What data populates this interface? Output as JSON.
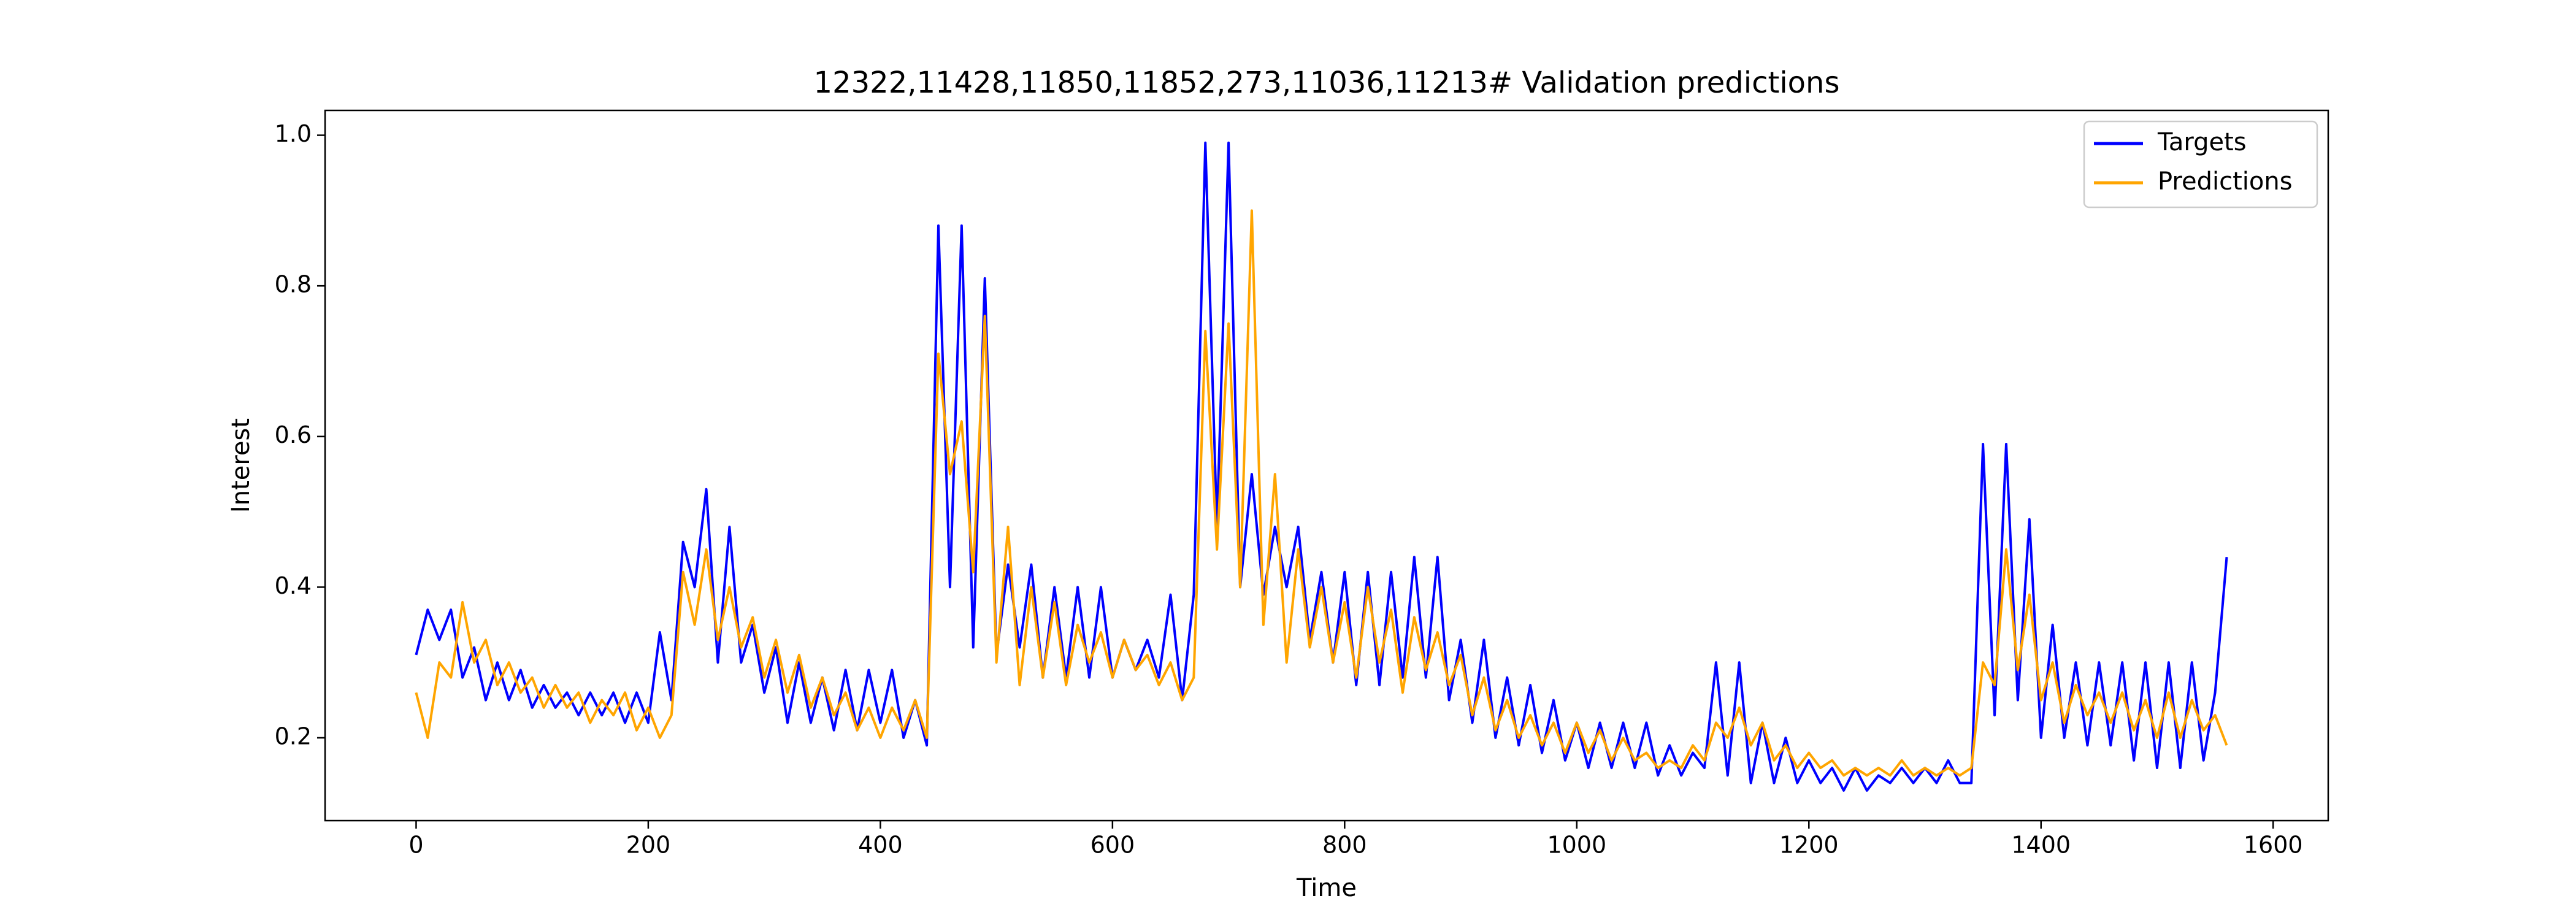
{
  "chart_data": {
    "type": "line",
    "title": "12322,11428,11850,11852,273,11036,11213# Validation predictions",
    "x_label": "Time",
    "y_label": "Interest",
    "x": [
      0,
      10,
      20,
      30,
      40,
      50,
      60,
      70,
      80,
      90,
      100,
      110,
      120,
      130,
      140,
      150,
      160,
      170,
      180,
      190,
      200,
      210,
      220,
      230,
      240,
      250,
      260,
      270,
      280,
      290,
      300,
      310,
      320,
      330,
      340,
      350,
      360,
      370,
      380,
      390,
      400,
      410,
      420,
      430,
      440,
      450,
      460,
      470,
      480,
      490,
      500,
      510,
      520,
      530,
      540,
      550,
      560,
      570,
      580,
      590,
      600,
      610,
      620,
      630,
      640,
      650,
      660,
      670,
      680,
      690,
      700,
      710,
      720,
      730,
      740,
      750,
      760,
      770,
      780,
      790,
      800,
      810,
      820,
      830,
      840,
      850,
      860,
      870,
      880,
      890,
      900,
      910,
      920,
      930,
      940,
      950,
      960,
      970,
      980,
      990,
      1000,
      1010,
      1020,
      1030,
      1040,
      1050,
      1060,
      1070,
      1080,
      1090,
      1100,
      1110,
      1120,
      1130,
      1140,
      1150,
      1160,
      1170,
      1180,
      1190,
      1200,
      1210,
      1220,
      1230,
      1240,
      1250,
      1260,
      1270,
      1280,
      1290,
      1300,
      1310,
      1320,
      1330,
      1340,
      1350,
      1360,
      1370,
      1380,
      1390,
      1400,
      1410,
      1420,
      1430,
      1440,
      1450,
      1460,
      1470,
      1480,
      1490,
      1500,
      1510,
      1520,
      1530,
      1540,
      1550,
      1560
    ],
    "series": [
      {
        "name": "Targets",
        "color": "#0000ff",
        "values": [
          0.31,
          0.37,
          0.33,
          0.37,
          0.28,
          0.32,
          0.25,
          0.3,
          0.25,
          0.29,
          0.24,
          0.27,
          0.24,
          0.26,
          0.23,
          0.26,
          0.23,
          0.26,
          0.22,
          0.26,
          0.22,
          0.34,
          0.25,
          0.46,
          0.4,
          0.53,
          0.3,
          0.48,
          0.3,
          0.35,
          0.26,
          0.32,
          0.22,
          0.3,
          0.22,
          0.28,
          0.21,
          0.29,
          0.21,
          0.29,
          0.22,
          0.29,
          0.2,
          0.25,
          0.19,
          0.88,
          0.4,
          0.88,
          0.32,
          0.81,
          0.31,
          0.43,
          0.32,
          0.43,
          0.28,
          0.4,
          0.28,
          0.4,
          0.28,
          0.4,
          0.28,
          0.33,
          0.29,
          0.33,
          0.28,
          0.39,
          0.25,
          0.39,
          0.99,
          0.48,
          0.99,
          0.4,
          0.55,
          0.39,
          0.48,
          0.4,
          0.48,
          0.33,
          0.42,
          0.3,
          0.42,
          0.27,
          0.42,
          0.27,
          0.42,
          0.28,
          0.44,
          0.28,
          0.44,
          0.25,
          0.33,
          0.22,
          0.33,
          0.2,
          0.28,
          0.19,
          0.27,
          0.18,
          0.25,
          0.17,
          0.22,
          0.16,
          0.22,
          0.16,
          0.22,
          0.16,
          0.22,
          0.15,
          0.19,
          0.15,
          0.18,
          0.16,
          0.3,
          0.15,
          0.3,
          0.14,
          0.22,
          0.14,
          0.2,
          0.14,
          0.17,
          0.14,
          0.16,
          0.13,
          0.16,
          0.13,
          0.15,
          0.14,
          0.16,
          0.14,
          0.16,
          0.14,
          0.17,
          0.14,
          0.14,
          0.59,
          0.23,
          0.59,
          0.25,
          0.49,
          0.2,
          0.35,
          0.2,
          0.3,
          0.19,
          0.3,
          0.19,
          0.3,
          0.17,
          0.3,
          0.16,
          0.3,
          0.16,
          0.3,
          0.17,
          0.26,
          0.44
        ]
      },
      {
        "name": "Predictions",
        "color": "#ffa500",
        "values": [
          0.26,
          0.2,
          0.3,
          0.28,
          0.38,
          0.3,
          0.33,
          0.27,
          0.3,
          0.26,
          0.28,
          0.24,
          0.27,
          0.24,
          0.26,
          0.22,
          0.25,
          0.23,
          0.26,
          0.21,
          0.24,
          0.2,
          0.23,
          0.42,
          0.35,
          0.45,
          0.33,
          0.4,
          0.32,
          0.36,
          0.28,
          0.33,
          0.26,
          0.31,
          0.24,
          0.28,
          0.23,
          0.26,
          0.21,
          0.24,
          0.2,
          0.24,
          0.21,
          0.25,
          0.2,
          0.71,
          0.55,
          0.62,
          0.42,
          0.76,
          0.3,
          0.48,
          0.27,
          0.4,
          0.28,
          0.38,
          0.27,
          0.35,
          0.3,
          0.34,
          0.28,
          0.33,
          0.29,
          0.31,
          0.27,
          0.3,
          0.25,
          0.28,
          0.74,
          0.45,
          0.75,
          0.4,
          0.9,
          0.35,
          0.55,
          0.3,
          0.45,
          0.32,
          0.4,
          0.3,
          0.38,
          0.28,
          0.4,
          0.3,
          0.37,
          0.26,
          0.36,
          0.29,
          0.34,
          0.27,
          0.31,
          0.23,
          0.28,
          0.21,
          0.25,
          0.2,
          0.23,
          0.19,
          0.22,
          0.18,
          0.22,
          0.18,
          0.21,
          0.17,
          0.2,
          0.17,
          0.18,
          0.16,
          0.17,
          0.16,
          0.19,
          0.17,
          0.22,
          0.2,
          0.24,
          0.19,
          0.22,
          0.17,
          0.19,
          0.16,
          0.18,
          0.16,
          0.17,
          0.15,
          0.16,
          0.15,
          0.16,
          0.15,
          0.17,
          0.15,
          0.16,
          0.15,
          0.16,
          0.15,
          0.16,
          0.3,
          0.27,
          0.45,
          0.29,
          0.39,
          0.25,
          0.3,
          0.22,
          0.27,
          0.23,
          0.26,
          0.22,
          0.26,
          0.21,
          0.25,
          0.2,
          0.26,
          0.2,
          0.25,
          0.21,
          0.23,
          0.19
        ]
      }
    ],
    "xlim": [
      -78.45,
      1647.45
    ],
    "ylim": [
      0.09,
      1.033
    ],
    "xticks": [
      0,
      200,
      400,
      600,
      800,
      1000,
      1200,
      1400,
      1600
    ],
    "yticks": [
      0.2,
      0.4,
      0.6,
      0.8,
      {
        "value": 1,
        "label": "1.0"
      }
    ],
    "legend": "upper right",
    "grid": false
  }
}
